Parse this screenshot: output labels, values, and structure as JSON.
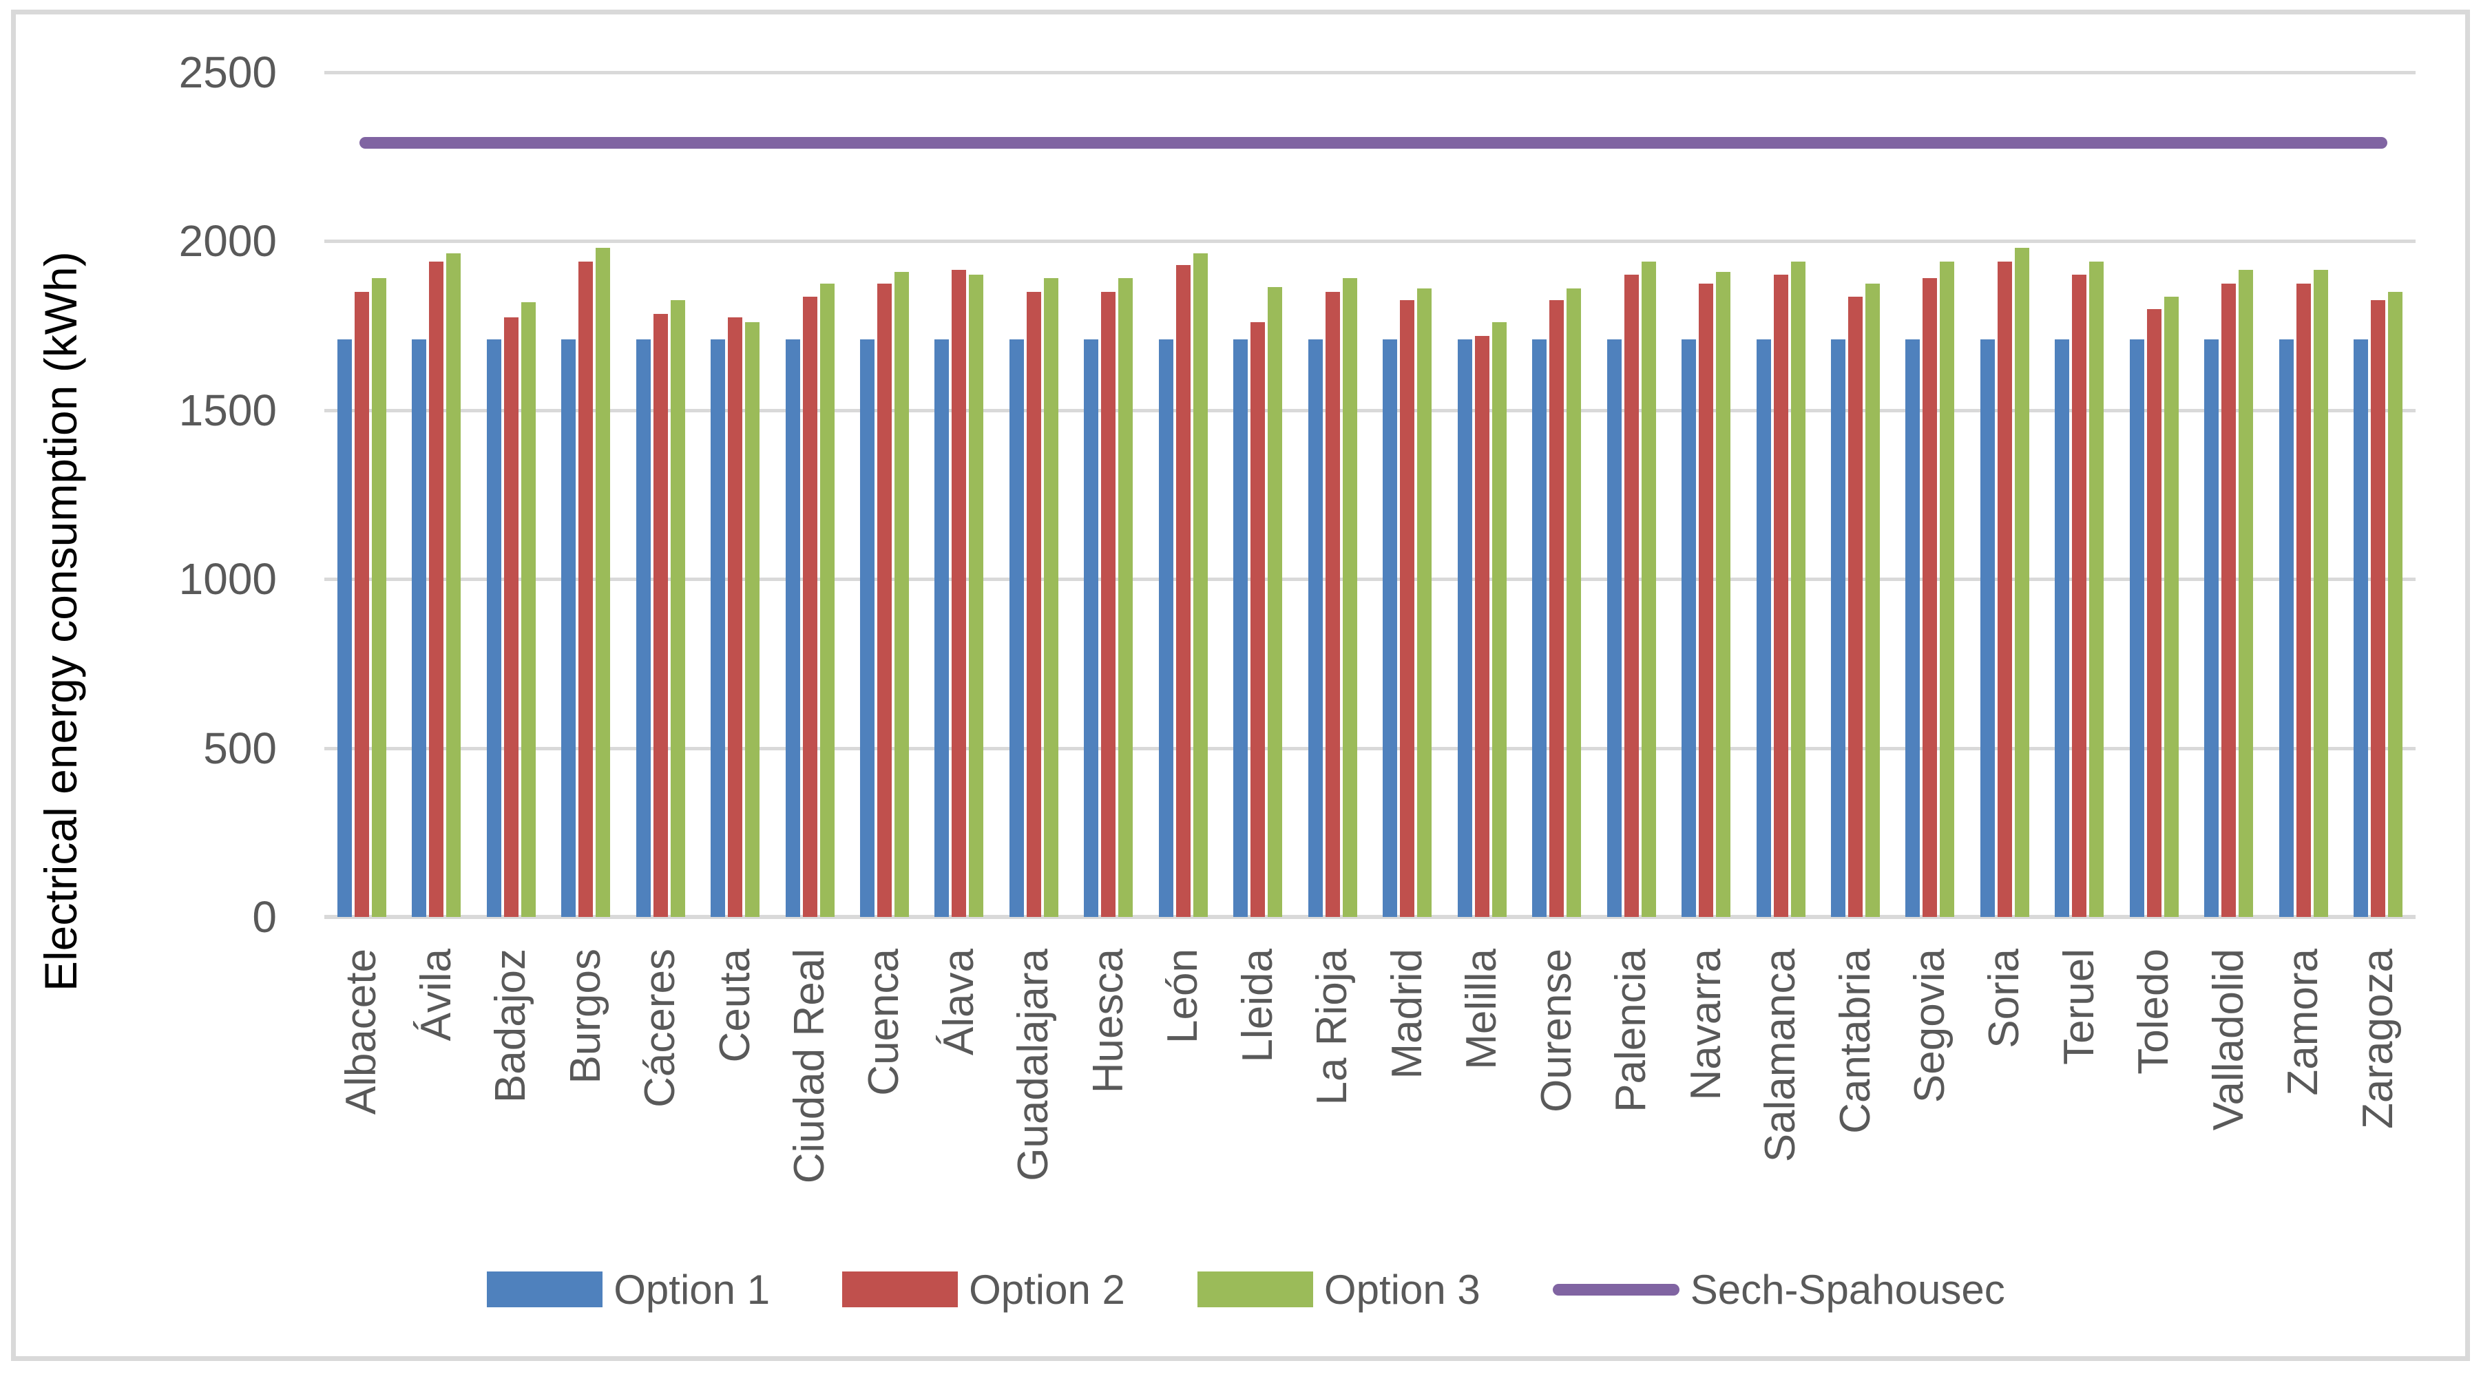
{
  "chart_data": {
    "type": "bar",
    "title": "",
    "xlabel": "",
    "ylabel": "Electrical energy consumption  (kWh)",
    "ylim": [
      0,
      2500
    ],
    "yticks": [
      0,
      500,
      1000,
      1500,
      2000,
      2500
    ],
    "grid": true,
    "legend_position": "bottom-center",
    "categories": [
      "Albacete",
      "Ávila",
      "Badajoz",
      "Burgos",
      "Cáceres",
      "Ceuta",
      "Ciudad Real",
      "Cuenca",
      "Álava",
      "Guadalajara",
      "Huesca",
      "León",
      "Lleida",
      "La Rioja",
      "Madrid",
      "Melilla",
      "Ourense",
      "Palencia",
      "Navarra",
      "Salamanca",
      "Cantabria",
      "Segovia",
      "Soria",
      "Teruel",
      "Toledo",
      "Valladolid",
      "Zamora",
      "Zaragoza"
    ],
    "series": [
      {
        "name": "Option 1",
        "type": "bar",
        "color": "#4F81BD",
        "values": [
          1710,
          1710,
          1710,
          1710,
          1710,
          1710,
          1710,
          1710,
          1710,
          1710,
          1710,
          1710,
          1710,
          1710,
          1710,
          1710,
          1710,
          1710,
          1710,
          1710,
          1710,
          1710,
          1710,
          1710,
          1710,
          1710,
          1710,
          1710
        ]
      },
      {
        "name": "Option 2",
        "type": "bar",
        "color": "#C0504D",
        "values": [
          1850,
          1940,
          1775,
          1940,
          1785,
          1775,
          1835,
          1875,
          1915,
          1850,
          1850,
          1930,
          1760,
          1850,
          1825,
          1720,
          1825,
          1900,
          1875,
          1900,
          1835,
          1890,
          1940,
          1900,
          1800,
          1875,
          1875,
          1825
        ]
      },
      {
        "name": "Option 3",
        "type": "bar",
        "color": "#9BBB59",
        "values": [
          1890,
          1965,
          1820,
          1980,
          1825,
          1760,
          1875,
          1910,
          1900,
          1890,
          1890,
          1965,
          1865,
          1890,
          1860,
          1760,
          1860,
          1940,
          1910,
          1940,
          1875,
          1940,
          1980,
          1940,
          1835,
          1915,
          1915,
          1850
        ]
      },
      {
        "name": "Sech-Spahousec",
        "type": "line",
        "color": "#8064A2",
        "constant_value": 2290
      }
    ]
  },
  "colors": {
    "grid": "#d9d9d9",
    "frame": "#d9d9d9",
    "tick_text": "#595959",
    "axis_title_text": "#000000",
    "legend_text": "#595959",
    "background": "#ffffff"
  }
}
